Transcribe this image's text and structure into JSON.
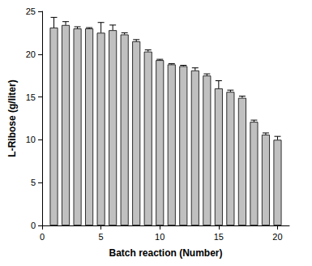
{
  "chart_data": {
    "type": "bar",
    "x_label": "Batch reaction (Number)",
    "y_label": "L-Ribose (g/liter)",
    "x": [
      1,
      2,
      3,
      4,
      5,
      6,
      7,
      8,
      9,
      10,
      11,
      12,
      13,
      14,
      15,
      16,
      17,
      18,
      19,
      20
    ],
    "values": [
      23.1,
      23.4,
      23.0,
      23.0,
      22.5,
      22.8,
      22.3,
      21.5,
      20.3,
      19.3,
      18.8,
      18.6,
      18.1,
      17.5,
      16.0,
      15.6,
      14.9,
      12.1,
      10.6,
      10.0
    ],
    "error": [
      1.2,
      0.4,
      0.2,
      0.1,
      1.2,
      0.6,
      0.2,
      0.2,
      0.2,
      0.1,
      0.1,
      0.1,
      0.3,
      0.2,
      0.9,
      0.2,
      0.2,
      0.2,
      0.2,
      0.4
    ],
    "color": "#c0c0c0",
    "xlim": [
      0,
      21
    ],
    "xticks": [
      0,
      5,
      10,
      15,
      20
    ],
    "ylim": [
      0,
      25
    ],
    "yticks": [
      0,
      5,
      10,
      15,
      20,
      25
    ],
    "grid": false
  }
}
